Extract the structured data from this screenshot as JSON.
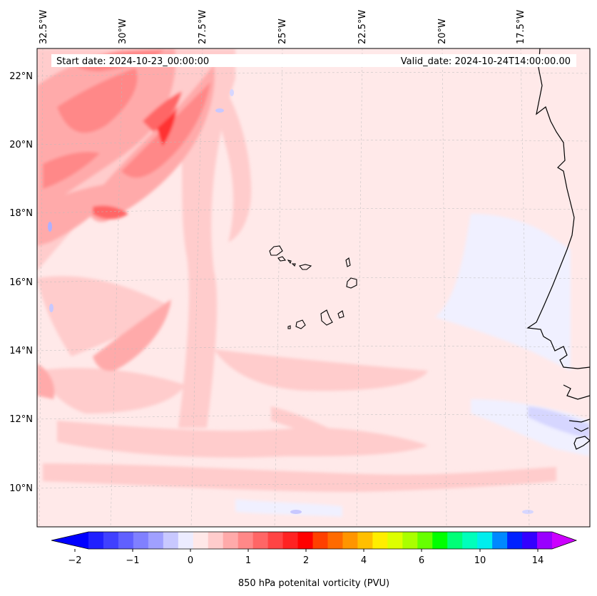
{
  "header": {
    "start_date": "Start date: 2024-10-23_00:00:00",
    "valid_date": "Valid_date: 2024-10-24T14:00:00.00"
  },
  "map": {
    "lon_labels": [
      "32.5°W",
      "30°W",
      "27.5°W",
      "25°W",
      "22.5°W",
      "20°W",
      "17.5°W"
    ],
    "lat_labels": [
      "22°N",
      "20°N",
      "18°N",
      "16°N",
      "14°N",
      "12°N",
      "10°N"
    ],
    "gridlines": "dashed"
  },
  "colorbar": {
    "label": "850 hPa potenital vorticity (PVU)",
    "tick_labels": [
      "−2",
      "−1",
      "0",
      "1",
      "2",
      "4",
      "6",
      "10",
      "14"
    ],
    "colors": [
      "#0000ff",
      "#2020ff",
      "#4040ff",
      "#6060ff",
      "#8080ff",
      "#a0a0ff",
      "#c8c8ff",
      "#ececff",
      "#ffe8e8",
      "#ffcccc",
      "#ffaaaa",
      "#ff8888",
      "#ff6666",
      "#ff4444",
      "#ff2222",
      "#ff0000",
      "#ff4000",
      "#ff6a00",
      "#ff9500",
      "#ffbf00",
      "#ffee00",
      "#ddff00",
      "#aaff00",
      "#66ff00",
      "#00ff00",
      "#00ff77",
      "#00ffbb",
      "#00eeee",
      "#0088ff",
      "#0022ff",
      "#3300ff",
      "#9900ff",
      "#cc00ff"
    ],
    "extend": "both"
  }
}
